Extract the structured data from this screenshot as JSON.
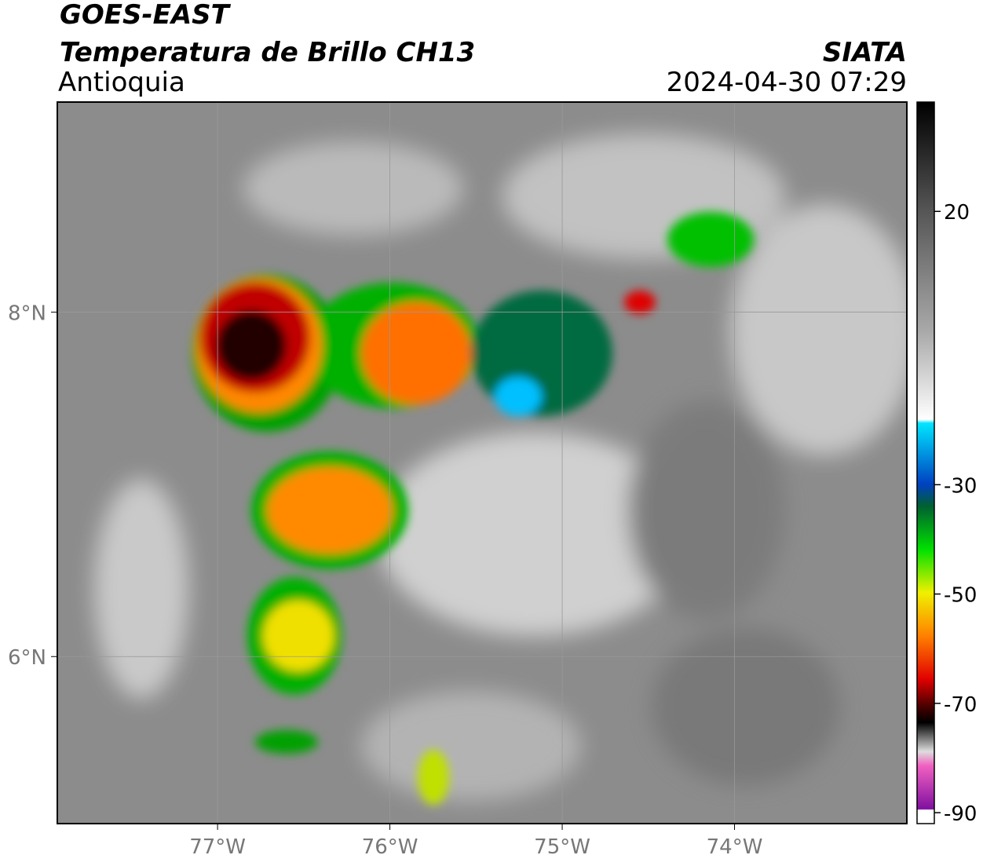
{
  "header": {
    "title": "GOES-EAST",
    "subtitle": "Temperatura de Brillo CH13",
    "region": "Antioquia",
    "source": "SIATA",
    "datetime": "2024-04-30 07:29"
  },
  "map": {
    "xlim": [
      -77.93,
      -73.0
    ],
    "ylim": [
      5.03,
      9.22
    ],
    "xticks": [
      {
        "value": -77,
        "label": "77°W"
      },
      {
        "value": -76,
        "label": "76°W"
      },
      {
        "value": -75,
        "label": "75°W"
      },
      {
        "value": -74,
        "label": "74°W"
      }
    ],
    "yticks": [
      {
        "value": 8,
        "label": "8°N"
      },
      {
        "value": 6,
        "label": "6°N"
      }
    ],
    "grid": true
  },
  "colorbar": {
    "lim": [
      -92,
      40
    ],
    "ticks": [
      20,
      -30,
      -50,
      -70,
      -90
    ]
  }
}
